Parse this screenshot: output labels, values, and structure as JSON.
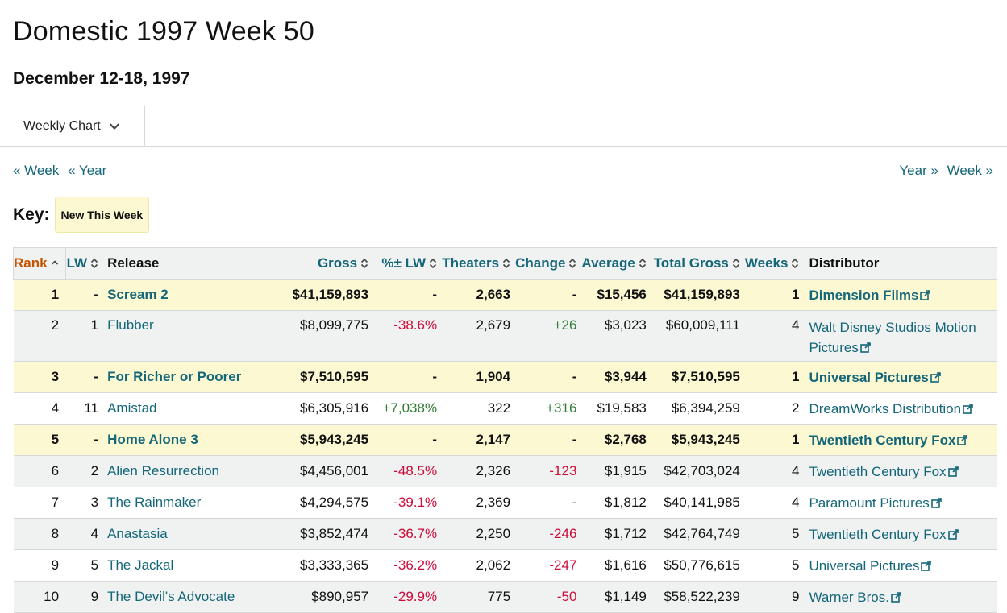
{
  "header": {
    "title": "Domestic 1997 Week 50",
    "date_range": "December 12-18, 1997"
  },
  "tabs": {
    "selected": "Weekly Chart"
  },
  "nav": {
    "prev_week": "« Week",
    "prev_year": "« Year",
    "next_year": "Year »",
    "next_week": "Week »"
  },
  "key": {
    "label": "Key:",
    "new_this_week": "New This Week"
  },
  "colors": {
    "link": "#146679",
    "rank_header": "#c45500",
    "negative": "#cc0c39",
    "positive": "#2e7d32",
    "new_highlight": "#fcf8d2",
    "alt_row": "#f0f2f2"
  },
  "table": {
    "columns": {
      "rank": "Rank",
      "lw": "LW",
      "release": "Release",
      "gross": "Gross",
      "pct_lw": "%± LW",
      "theaters": "Theaters",
      "change": "Change",
      "average": "Average",
      "total_gross": "Total Gross",
      "weeks": "Weeks",
      "distributor": "Distributor"
    },
    "rows": [
      {
        "rank": "1",
        "lw": "-",
        "release": "Scream 2",
        "gross": "$41,159,893",
        "pct_lw": "-",
        "theaters": "2,663",
        "change": "-",
        "average": "$15,456",
        "total_gross": "$41,159,893",
        "weeks": "1",
        "distributor": "Dimension Films",
        "is_new": true,
        "pct_tone": "",
        "change_tone": ""
      },
      {
        "rank": "2",
        "lw": "1",
        "release": "Flubber",
        "gross": "$8,099,775",
        "pct_lw": "-38.6%",
        "theaters": "2,679",
        "change": "+26",
        "average": "$3,023",
        "total_gross": "$60,009,111",
        "weeks": "4",
        "distributor": "Walt Disney Studios Motion Pictures",
        "is_new": false,
        "pct_tone": "neg",
        "change_tone": "pos"
      },
      {
        "rank": "3",
        "lw": "-",
        "release": "For Richer or Poorer",
        "gross": "$7,510,595",
        "pct_lw": "-",
        "theaters": "1,904",
        "change": "-",
        "average": "$3,944",
        "total_gross": "$7,510,595",
        "weeks": "1",
        "distributor": "Universal Pictures",
        "is_new": true,
        "pct_tone": "",
        "change_tone": ""
      },
      {
        "rank": "4",
        "lw": "11",
        "release": "Amistad",
        "gross": "$6,305,916",
        "pct_lw": "+7,038%",
        "theaters": "322",
        "change": "+316",
        "average": "$19,583",
        "total_gross": "$6,394,259",
        "weeks": "2",
        "distributor": "DreamWorks Distribution",
        "is_new": false,
        "pct_tone": "pos",
        "change_tone": "pos"
      },
      {
        "rank": "5",
        "lw": "-",
        "release": "Home Alone 3",
        "gross": "$5,943,245",
        "pct_lw": "-",
        "theaters": "2,147",
        "change": "-",
        "average": "$2,768",
        "total_gross": "$5,943,245",
        "weeks": "1",
        "distributor": "Twentieth Century Fox",
        "is_new": true,
        "pct_tone": "",
        "change_tone": ""
      },
      {
        "rank": "6",
        "lw": "2",
        "release": "Alien Resurrection",
        "gross": "$4,456,001",
        "pct_lw": "-48.5%",
        "theaters": "2,326",
        "change": "-123",
        "average": "$1,915",
        "total_gross": "$42,703,024",
        "weeks": "4",
        "distributor": "Twentieth Century Fox",
        "is_new": false,
        "pct_tone": "neg",
        "change_tone": "neg"
      },
      {
        "rank": "7",
        "lw": "3",
        "release": "The Rainmaker",
        "gross": "$4,294,575",
        "pct_lw": "-39.1%",
        "theaters": "2,369",
        "change": "-",
        "average": "$1,812",
        "total_gross": "$40,141,985",
        "weeks": "4",
        "distributor": "Paramount Pictures",
        "is_new": false,
        "pct_tone": "neg",
        "change_tone": ""
      },
      {
        "rank": "8",
        "lw": "4",
        "release": "Anastasia",
        "gross": "$3,852,474",
        "pct_lw": "-36.7%",
        "theaters": "2,250",
        "change": "-246",
        "average": "$1,712",
        "total_gross": "$42,764,749",
        "weeks": "5",
        "distributor": "Twentieth Century Fox",
        "is_new": false,
        "pct_tone": "neg",
        "change_tone": "neg"
      },
      {
        "rank": "9",
        "lw": "5",
        "release": "The Jackal",
        "gross": "$3,333,365",
        "pct_lw": "-36.2%",
        "theaters": "2,062",
        "change": "-247",
        "average": "$1,616",
        "total_gross": "$50,776,615",
        "weeks": "5",
        "distributor": "Universal Pictures",
        "is_new": false,
        "pct_tone": "neg",
        "change_tone": "neg"
      },
      {
        "rank": "10",
        "lw": "9",
        "release": "The Devil's Advocate",
        "gross": "$890,957",
        "pct_lw": "-29.9%",
        "theaters": "775",
        "change": "-50",
        "average": "$1,149",
        "total_gross": "$58,522,239",
        "weeks": "9",
        "distributor": "Warner Bros.",
        "is_new": false,
        "pct_tone": "neg",
        "change_tone": "neg"
      }
    ]
  }
}
